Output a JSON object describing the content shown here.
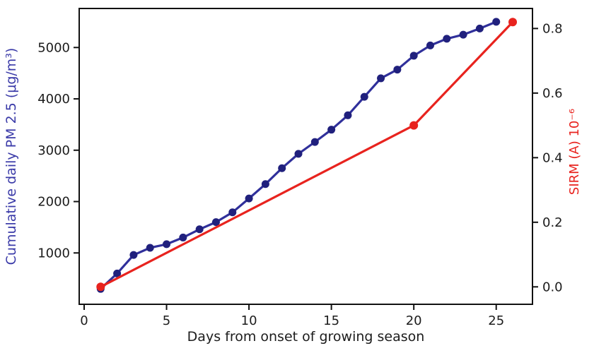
{
  "figure": {
    "background": "#ffffff"
  },
  "chart_data": {
    "type": "line",
    "title": "",
    "xlabel": "Days from onset of growing season",
    "ylabel_left": "Cumulative daily PM 2.5 (μg/m³)",
    "ylabel_right": "SIRM (A) 10⁻⁶",
    "xlim": [
      -0.3,
      27.2
    ],
    "ylim_left": [
      0,
      5760
    ],
    "ylim_right": [
      -0.054,
      0.862
    ],
    "grid": false,
    "legend": "none",
    "x_ticks": {
      "values": [
        0,
        5,
        10,
        15,
        20,
        25
      ],
      "labels": [
        "0",
        "5",
        "10",
        "15",
        "20",
        "25"
      ]
    },
    "y_left_ticks": {
      "values": [
        1000,
        2000,
        3000,
        4000,
        5000
      ],
      "labels": [
        "1000",
        "2000",
        "3000",
        "4000",
        "5000"
      ]
    },
    "y_right_ticks": {
      "values": [
        0.0,
        0.2,
        0.4,
        0.6,
        0.8
      ],
      "labels": [
        "0.0",
        "0.2",
        "0.4",
        "0.6",
        "0.8"
      ]
    },
    "series": [
      {
        "name": "cumulative-pm25",
        "label": "Cumulative daily PM 2.5",
        "axis": "left",
        "color": "#30309b",
        "marker_color": "#20207d",
        "marker_radius": 5.5,
        "line_width": 3.2,
        "x": [
          1,
          2,
          3,
          4,
          5,
          6,
          7,
          8,
          9,
          10,
          11,
          12,
          13,
          14,
          15,
          16,
          17,
          18,
          19,
          20,
          21,
          22,
          23,
          24,
          25
        ],
        "y": [
          300,
          600,
          960,
          1100,
          1170,
          1300,
          1460,
          1600,
          1790,
          2060,
          2340,
          2650,
          2930,
          3160,
          3400,
          3680,
          4040,
          4400,
          4570,
          4840,
          5040,
          5170,
          5250,
          5370,
          5500
        ]
      },
      {
        "name": "sirm",
        "label": "SIRM",
        "axis": "right",
        "color": "#e8231e",
        "marker_color": "#e8231e",
        "marker_radius": 6,
        "line_width": 3.2,
        "x": [
          1,
          20,
          26
        ],
        "y": [
          0.0,
          0.5,
          0.82
        ]
      }
    ],
    "axis_colors": {
      "left_label": "#3a3aa8",
      "right_label": "#e8231e",
      "tick_text": "#1c1c1c",
      "spine": "#111111"
    }
  }
}
